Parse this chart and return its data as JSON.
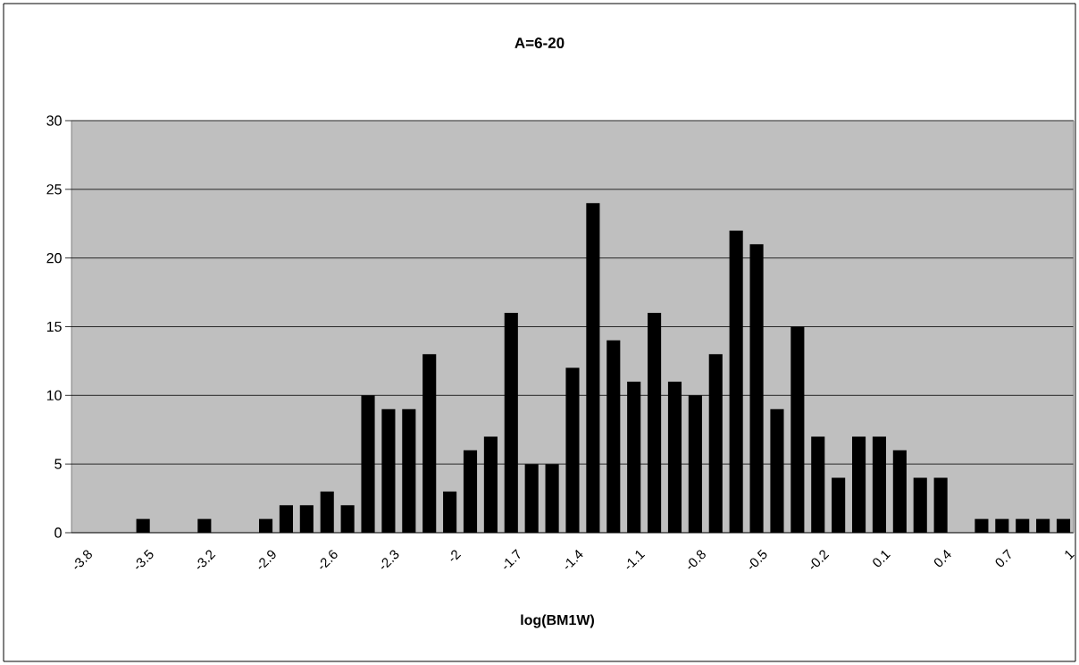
{
  "chart_data": {
    "type": "bar",
    "title": "A=6-20",
    "xlabel": "log(BM1W)",
    "categories": [
      "-3.8",
      null,
      null,
      "-3.5",
      null,
      null,
      "-3.2",
      null,
      null,
      "-2.9",
      null,
      null,
      "-2.6",
      null,
      null,
      "-2.3",
      null,
      null,
      "-2",
      null,
      null,
      "-1.7",
      null,
      null,
      "-1.4",
      null,
      null,
      "-1.1",
      null,
      null,
      "-0.8",
      null,
      null,
      "-0.5",
      null,
      null,
      "-0.2",
      null,
      null,
      "0.1",
      null,
      null,
      "0.4",
      null,
      null,
      "0.7",
      null,
      null,
      "1"
    ],
    "values": [
      0,
      0,
      0,
      1,
      0,
      0,
      1,
      0,
      0,
      1,
      2,
      2,
      3,
      2,
      10,
      9,
      9,
      13,
      3,
      6,
      7,
      16,
      5,
      5,
      12,
      24,
      14,
      11,
      16,
      11,
      10,
      13,
      22,
      21,
      9,
      15,
      7,
      4,
      7,
      7,
      6,
      4,
      4,
      0,
      1,
      1,
      1,
      1,
      1
    ],
    "color": "#000000",
    "ylim": [
      0,
      30
    ],
    "yticks": [
      0,
      5,
      10,
      15,
      20,
      25,
      30
    ],
    "grid": "y"
  }
}
